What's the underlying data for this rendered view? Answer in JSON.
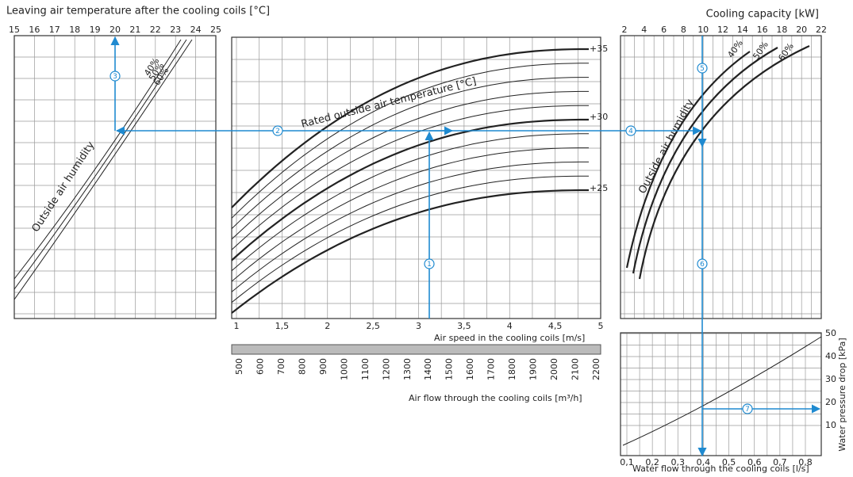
{
  "left_panel": {
    "title": "Leaving air temperature after the cooling coils [°C]",
    "x_ticks": [
      "15",
      "16",
      "17",
      "18",
      "19",
      "20",
      "21",
      "22",
      "23",
      "24",
      "25"
    ],
    "curve_labels": [
      "40%",
      "50%",
      "60%"
    ],
    "curve_title": "Outside air humidity"
  },
  "middle_panel": {
    "curve_title": "Rated outside air temperature [°C]",
    "curve_labels": [
      "+35",
      "+30",
      "+25"
    ],
    "x_ticks": [
      "1",
      "1,5",
      "2",
      "2,5",
      "3",
      "3,5",
      "4",
      "4,5",
      "5"
    ],
    "x_title": "Air speed in the cooling coils [m/s]",
    "flow_ticks": [
      "500",
      "600",
      "700",
      "800",
      "900",
      "1000",
      "1100",
      "1200",
      "1300",
      "1400",
      "1500",
      "1600",
      "1700",
      "1800",
      "1900",
      "2000",
      "2100",
      "2200"
    ],
    "flow_title": "Air flow through the cooling coils [m³/h]"
  },
  "right_panel": {
    "title": "Cooling capacity [kW]",
    "x_ticks": [
      "2",
      "4",
      "6",
      "8",
      "10",
      "12",
      "14",
      "16",
      "18",
      "20",
      "22"
    ],
    "curve_labels": [
      "40%",
      "50%",
      "60%"
    ],
    "curve_title": "Outside air humidity"
  },
  "pressure_panel": {
    "x_ticks": [
      "0,1",
      "0,2",
      "0,3",
      "0,4",
      "0,5",
      "0,6",
      "0,7",
      "0,8"
    ],
    "x_title": "Water flow through the cooling coils [l/s]",
    "y_ticks": [
      "50",
      "40",
      "30",
      "20",
      "10"
    ],
    "y_title": "Water pressure drop [kPa]"
  },
  "steps": [
    "1",
    "2",
    "3",
    "4",
    "5",
    "6",
    "7"
  ]
}
